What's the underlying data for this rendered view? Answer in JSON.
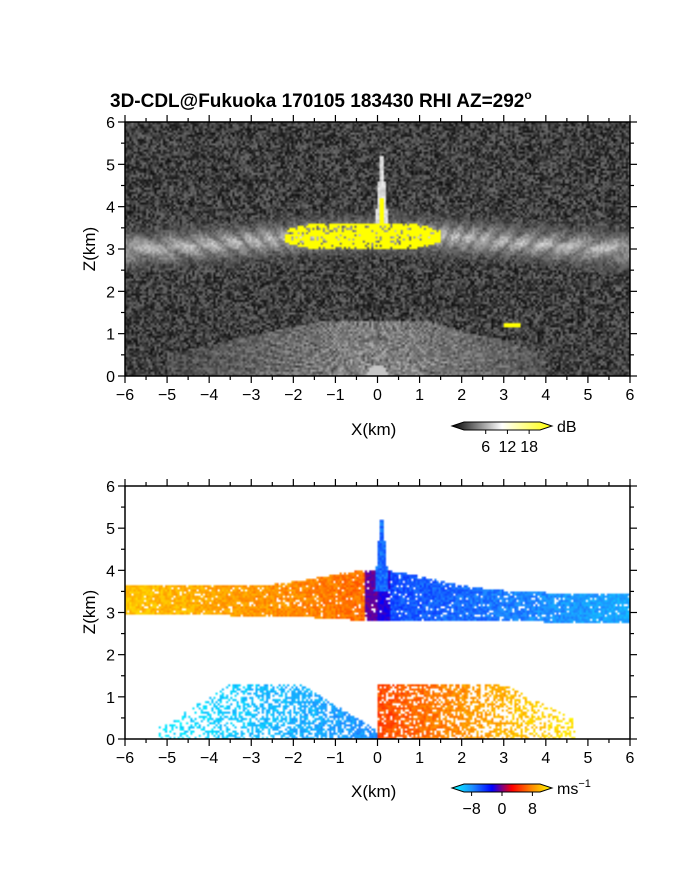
{
  "figure": {
    "title_main": "3D-CDL@Fukuoka 170105 183430 RHI AZ=292",
    "title_degree": "o"
  },
  "chart_data": [
    {
      "type": "heatmap",
      "name": "reflectivity-rhi",
      "title": "3D-CDL@Fukuoka 170105 183430 RHI AZ=292°",
      "xlabel": "X(km)",
      "ylabel": "Z(km)",
      "xlim": [
        -6,
        6
      ],
      "ylim": [
        0,
        6
      ],
      "xticks": [
        "−6",
        "−5",
        "−4",
        "−3",
        "−2",
        "−1",
        "0",
        "1",
        "2",
        "3",
        "4",
        "5",
        "6"
      ],
      "yticks": [
        "0",
        "1",
        "2",
        "3",
        "4",
        "5",
        "6"
      ],
      "background": "noise",
      "colorbar": {
        "unit": "dB",
        "ticks": [
          "6",
          "12",
          "18"
        ],
        "tick_values": [
          6,
          12,
          18
        ],
        "range": [
          0,
          21
        ],
        "colors": [
          "#000000",
          "#ffffff",
          "#ffff00"
        ]
      },
      "features": [
        {
          "kind": "cloud-layer",
          "x_range": [
            -6,
            6
          ],
          "z_center": 3.2,
          "z_thickness": 0.6,
          "strength_db": 12
        },
        {
          "kind": "saturated-core",
          "x_range": [
            -2.2,
            1.5
          ],
          "z_range": [
            3.0,
            3.6
          ],
          "strength_db": 20
        },
        {
          "kind": "spike",
          "x": 0.1,
          "z_range": [
            3.6,
            5.2
          ],
          "strength_db": 14
        },
        {
          "kind": "near-field-fan",
          "x_range": [
            -5,
            4
          ],
          "z_range": [
            0,
            1.3
          ],
          "strength_db": 9
        },
        {
          "kind": "saturated-spot",
          "x": 3.2,
          "z": 1.2,
          "strength_db": 20
        }
      ]
    },
    {
      "type": "heatmap",
      "name": "doppler-velocity-rhi",
      "xlabel": "X(km)",
      "ylabel": "Z(km)",
      "xlim": [
        -6,
        6
      ],
      "ylim": [
        0,
        6
      ],
      "xticks": [
        "−6",
        "−5",
        "−4",
        "−3",
        "−2",
        "−1",
        "0",
        "1",
        "2",
        "3",
        "4",
        "5",
        "6"
      ],
      "yticks": [
        "0",
        "1",
        "2",
        "3",
        "4",
        "5",
        "6"
      ],
      "background": "white",
      "colorbar": {
        "unit": "ms",
        "unit_exponent": "−1",
        "ticks": [
          "−8",
          "0",
          "8"
        ],
        "tick_values": [
          -8,
          0,
          8
        ],
        "range": [
          -10,
          10
        ],
        "colors": [
          "#00ffff",
          "#1e90ff",
          "#0000ff",
          "#ff0000",
          "#ff8c00",
          "#ffff00"
        ]
      },
      "features": [
        {
          "kind": "upper-layer-left",
          "x_range": [
            -6,
            0
          ],
          "z_range": [
            2.6,
            3.8
          ],
          "velocity_ms": 5
        },
        {
          "kind": "upper-layer-right",
          "x_range": [
            0,
            6
          ],
          "z_range": [
            2.6,
            3.7
          ],
          "velocity_ms": -5
        },
        {
          "kind": "spike",
          "x": 0.1,
          "z_range": [
            3.8,
            5.2
          ],
          "velocity_ms": -1
        },
        {
          "kind": "lower-fan-left",
          "x_range": [
            -5,
            0
          ],
          "z_range": [
            0,
            1.3
          ],
          "velocity_ms": -6
        },
        {
          "kind": "lower-fan-right",
          "x_range": [
            0,
            4.5
          ],
          "z_range": [
            0,
            1.3
          ],
          "velocity_ms": 6
        }
      ]
    }
  ]
}
